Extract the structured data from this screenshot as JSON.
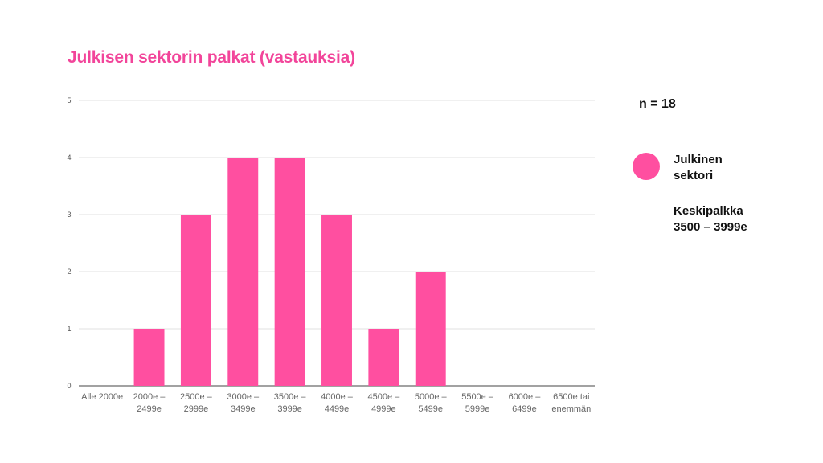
{
  "chart_data": {
    "type": "bar",
    "title": "Julkisen sektorin palkat (vastauksia)",
    "categories": [
      [
        "Alle 2000e"
      ],
      [
        "2000e –",
        "2499e"
      ],
      [
        "2500e –",
        "2999e"
      ],
      [
        "3000e –",
        "3499e"
      ],
      [
        "3500e –",
        "3999e"
      ],
      [
        "4000e –",
        "4499e"
      ],
      [
        "4500e –",
        "4999e"
      ],
      [
        "5000e –",
        "5499e"
      ],
      [
        "5500e –",
        "5999e"
      ],
      [
        "6000e –",
        "6499e"
      ],
      [
        "6500e tai",
        "enemmän"
      ]
    ],
    "series": [
      {
        "name": "Julkinen sektori",
        "color": "#ff4fa0",
        "values": [
          0,
          1,
          3,
          4,
          4,
          3,
          1,
          2,
          0,
          0,
          0
        ]
      }
    ],
    "ylim": [
      0,
      5
    ],
    "yticks": [
      "0",
      "1",
      "2",
      "3",
      "4",
      "5"
    ],
    "grid": true,
    "legend_placement": "right"
  },
  "annotations": {
    "n_label": "n = 18",
    "legend_label": "Julkinen sektori",
    "avg_title": "Keskipalkka",
    "avg_value": "3500 – 3999e"
  }
}
